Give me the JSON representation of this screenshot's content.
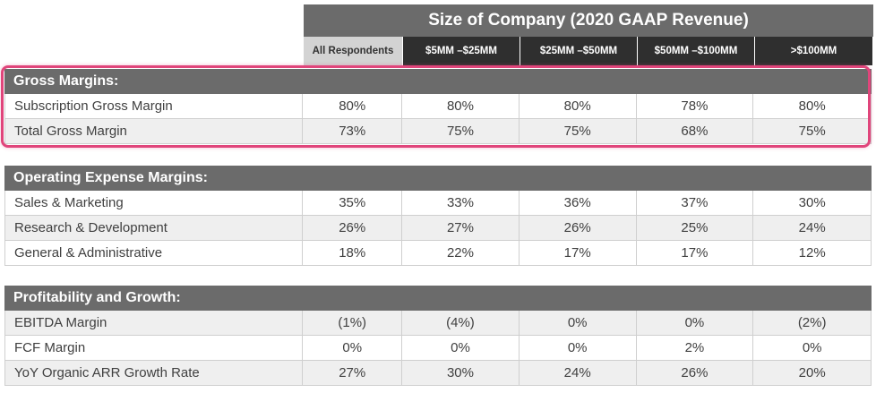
{
  "header": {
    "title": "Size of Company (2020 GAAP Revenue)",
    "columns": [
      "All Respondents",
      "$5MM –$25MM",
      "$25MM –$50MM",
      "$50MM –$100MM",
      ">$100MM"
    ]
  },
  "sections": [
    {
      "title": "Gross Margins:",
      "rows": [
        {
          "label": "Subscription Gross Margin",
          "values": [
            "80%",
            "80%",
            "80%",
            "78%",
            "80%"
          ]
        },
        {
          "label": "Total Gross Margin",
          "values": [
            "73%",
            "75%",
            "75%",
            "68%",
            "75%"
          ]
        }
      ]
    },
    {
      "title": "Operating Expense Margins:",
      "rows": [
        {
          "label": "Sales & Marketing",
          "values": [
            "35%",
            "33%",
            "36%",
            "37%",
            "30%"
          ]
        },
        {
          "label": "Research & Development",
          "values": [
            "26%",
            "27%",
            "26%",
            "25%",
            "24%"
          ]
        },
        {
          "label": "General & Administrative",
          "values": [
            "18%",
            "22%",
            "17%",
            "17%",
            "12%"
          ]
        }
      ]
    },
    {
      "title": "Profitability and Growth:",
      "rows": [
        {
          "label": "EBITDA Margin",
          "values": [
            "(1%)",
            "(4%)",
            "0%",
            "0%",
            "(2%)"
          ]
        },
        {
          "label": "FCF Margin",
          "values": [
            "0%",
            "0%",
            "0%",
            "2%",
            "0%"
          ]
        },
        {
          "label": "YoY Organic ARR Growth Rate",
          "values": [
            "27%",
            "30%",
            "24%",
            "26%",
            "20%"
          ]
        }
      ]
    }
  ],
  "highlight_color": "#e0457b"
}
